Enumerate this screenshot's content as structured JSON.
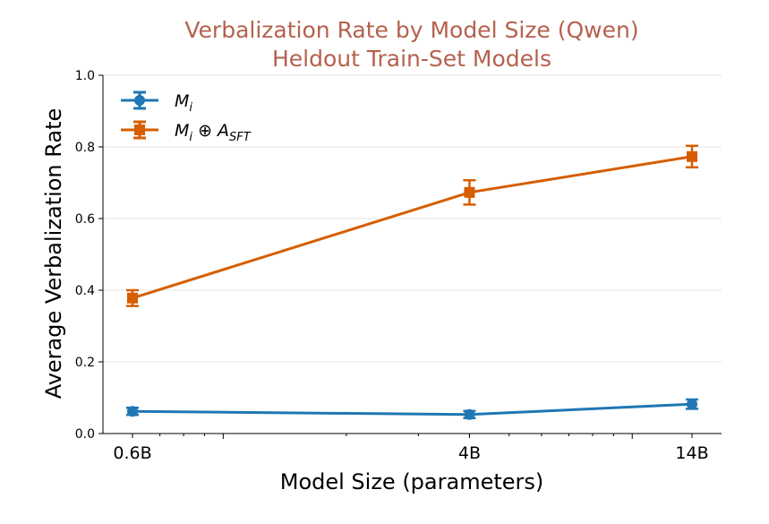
{
  "colors": {
    "title": "#b5614e",
    "series_1": "#1f77b4",
    "series_2": "#d55e00",
    "grid": "#e6e6e6"
  },
  "chart_data": {
    "type": "line",
    "title_line1": "Verbalization Rate by Model Size (Qwen)",
    "title_line2": "Heldout Train-Set Models",
    "xlabel": "Model Size (parameters)",
    "ylabel": "Average Verbalization Rate",
    "x_scale": "log",
    "x": [
      0.6,
      4,
      14
    ],
    "x_tick_labels": [
      "0.6B",
      "4B",
      "14B"
    ],
    "ylim": [
      0.0,
      1.0
    ],
    "y_ticks": [
      "0.0",
      "0.2",
      "0.4",
      "0.6",
      "0.8",
      "1.0"
    ],
    "grid": "horizontal",
    "legend_position": "top-left",
    "series": [
      {
        "legend_main": "M",
        "legend_sub": "i",
        "marker": "circle",
        "values": [
          0.062,
          0.053,
          0.082
        ],
        "errors": [
          0.01,
          0.01,
          0.013
        ]
      },
      {
        "legend_main": "M",
        "legend_sub": "i",
        "legend_op": " ⊕ A",
        "legend_sub2": "SFT",
        "marker": "square",
        "values": [
          0.378,
          0.673,
          0.773
        ],
        "errors": [
          0.022,
          0.034,
          0.03
        ]
      }
    ]
  }
}
